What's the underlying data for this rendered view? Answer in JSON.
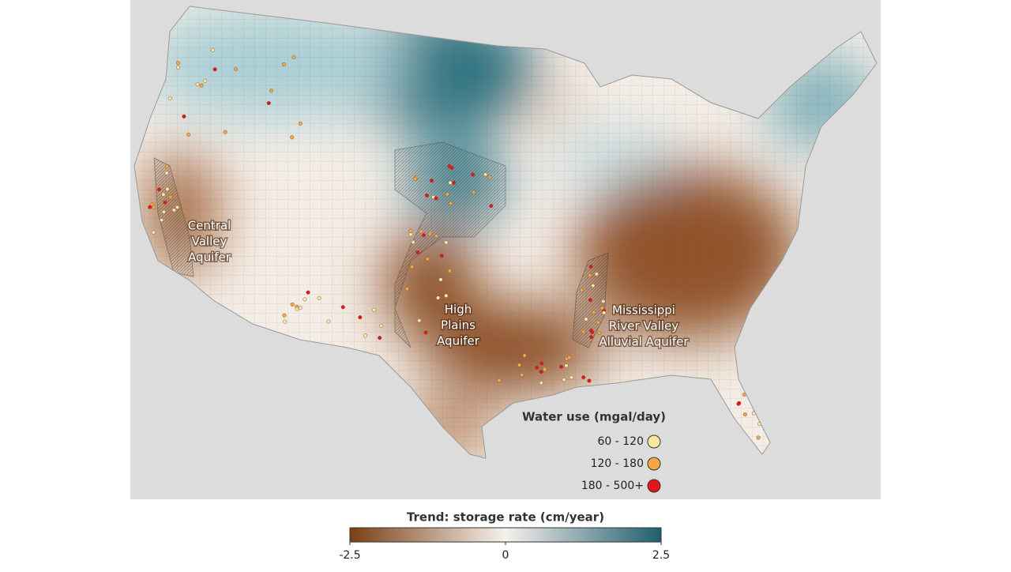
{
  "map": {
    "labels": [
      {
        "lines": [
          "Central",
          "Valley",
          "Aquifer"
        ]
      },
      {
        "lines": [
          "High",
          "Plains",
          "Aquifer"
        ]
      },
      {
        "lines": [
          "Mississippi",
          "River Valley",
          "Alluvial Aquifer"
        ]
      }
    ],
    "legend": {
      "title": "Water use (mgal/day)",
      "entries": [
        {
          "label": "60 - 120",
          "color": "#fbe7a1"
        },
        {
          "label": "120 - 180",
          "color": "#f4a742"
        },
        {
          "label": "180 - 500+",
          "color": "#e3141b"
        }
      ]
    },
    "colorbar": {
      "title": "Trend: storage rate (cm/year)",
      "lim": [
        -2.5,
        2.5
      ],
      "ticks": [
        -2.5,
        0,
        2.5
      ],
      "colors": [
        "#7a3f14",
        "#f6f1ec",
        "#1f5f6e"
      ]
    }
  }
}
